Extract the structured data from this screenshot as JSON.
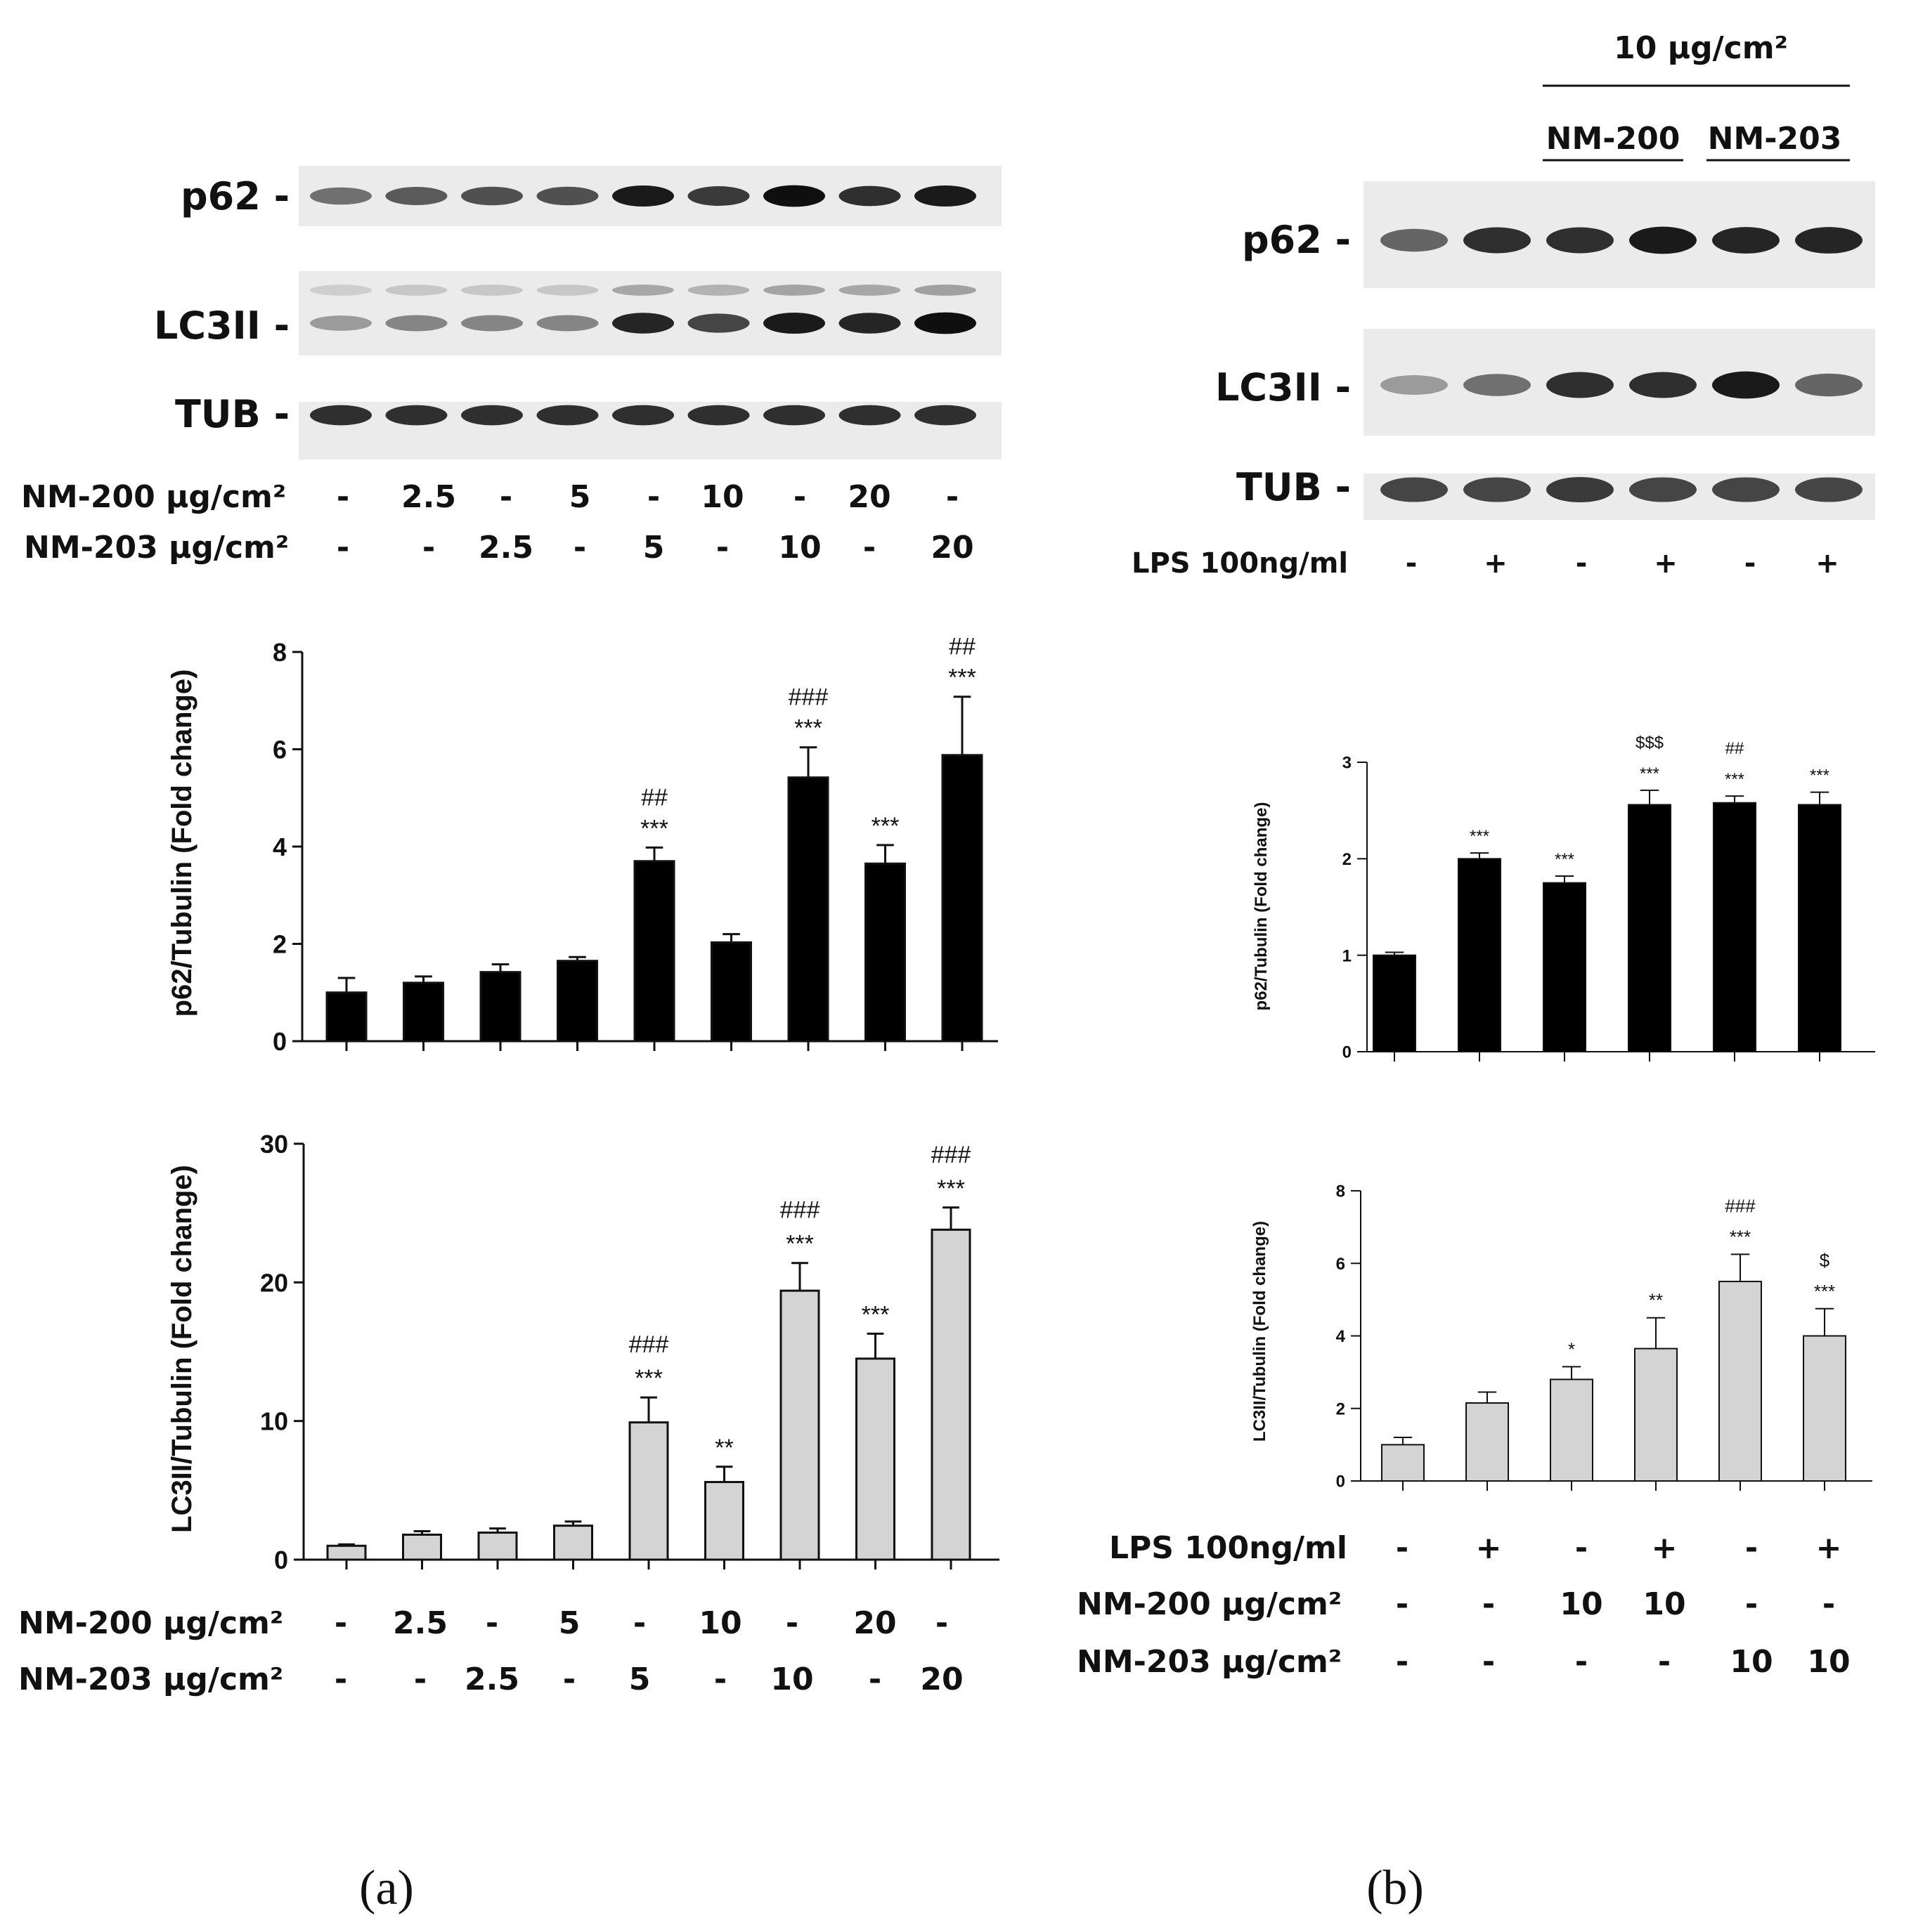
{
  "panel_a": {
    "letter": "(a)",
    "blot": {
      "rows": [
        {
          "name": "p62",
          "label": "p62 -"
        },
        {
          "name": "lc3ii",
          "label": "LC3II -"
        },
        {
          "name": "tub",
          "label": "TUB -"
        }
      ],
      "lane_count": 9,
      "band_darkness": {
        "p62": [
          0.55,
          0.65,
          0.7,
          0.7,
          0.95,
          0.8,
          1.0,
          0.85,
          0.95
        ],
        "lc3ii": [
          0.35,
          0.45,
          0.45,
          0.45,
          0.9,
          0.75,
          0.95,
          0.9,
          1.0
        ],
        "tub": [
          0.85,
          0.85,
          0.85,
          0.85,
          0.85,
          0.85,
          0.85,
          0.85,
          0.85
        ]
      }
    },
    "conditions_top": [
      {
        "label": "NM-200 μg/cm²",
        "values": [
          "-",
          "2.5",
          "-",
          "5",
          "-",
          "10",
          "-",
          "20",
          "-"
        ]
      },
      {
        "label": "NM-203 μg/cm²",
        "values": [
          "-",
          "-",
          "2.5",
          "-",
          "5",
          "-",
          "10",
          "-",
          "20"
        ]
      }
    ],
    "conditions_bottom": [
      {
        "label": "NM-200 μg/cm²",
        "values": [
          "-",
          "2.5",
          "-",
          "5",
          "-",
          "10",
          "-",
          "20",
          "-"
        ]
      },
      {
        "label": "NM-203 μg/cm²",
        "values": [
          "-",
          "-",
          "2.5",
          "-",
          "5",
          "-",
          "10",
          "-",
          "20"
        ]
      }
    ]
  },
  "panel_b": {
    "letter": "(b)",
    "dose_header": "10 μg/cm²",
    "group_labels": [
      "NM-200",
      "NM-203"
    ],
    "blot": {
      "rows": [
        {
          "name": "p62",
          "label": "p62 -"
        },
        {
          "name": "lc3ii",
          "label": "LC3II -"
        },
        {
          "name": "tub",
          "label": "TUB -"
        }
      ],
      "lane_count": 6,
      "band_darkness": {
        "p62": [
          0.6,
          0.85,
          0.85,
          0.95,
          0.9,
          0.9
        ],
        "lc3ii": [
          0.35,
          0.55,
          0.85,
          0.85,
          0.95,
          0.6
        ],
        "tub": [
          0.75,
          0.75,
          0.8,
          0.75,
          0.75,
          0.75
        ]
      }
    },
    "lps_top": {
      "label": "LPS 100ng/ml",
      "values": [
        "-",
        "+",
        "-",
        "+",
        "-",
        "+"
      ]
    },
    "conditions_bottom": [
      {
        "label": "LPS 100ng/ml",
        "values": [
          "-",
          "+",
          "-",
          "+",
          "-",
          "+"
        ]
      },
      {
        "label": "NM-200 μg/cm²",
        "values": [
          "-",
          "-",
          "10",
          "10",
          "-",
          "-"
        ]
      },
      {
        "label": "NM-203 μg/cm²",
        "values": [
          "-",
          "-",
          "-",
          "-",
          "10",
          "10"
        ]
      }
    ]
  },
  "chart_data": [
    {
      "id": "a_p62",
      "type": "bar",
      "title": "",
      "ylabel": "p62/Tubulin (Fold change)",
      "ylim": [
        0,
        8
      ],
      "yticks": [
        0,
        2,
        4,
        6,
        8
      ],
      "color": "#000000",
      "values": [
        1.0,
        1.2,
        1.42,
        1.65,
        3.7,
        2.03,
        5.42,
        3.65,
        5.88
      ],
      "errors": [
        0.3,
        0.13,
        0.16,
        0.08,
        0.28,
        0.17,
        0.62,
        0.38,
        1.2
      ],
      "annotations": [
        [],
        [],
        [],
        [],
        [
          "##",
          "***"
        ],
        [],
        [
          "###",
          "***"
        ],
        [
          "***"
        ],
        [
          "##",
          "***"
        ]
      ]
    },
    {
      "id": "a_lc3ii",
      "type": "bar",
      "title": "",
      "ylabel": "LC3II/Tubulin (Fold change)",
      "ylim": [
        0,
        30
      ],
      "yticks": [
        0,
        10,
        20,
        30
      ],
      "color": "#d4d4d4",
      "values": [
        1.0,
        1.8,
        1.95,
        2.45,
        9.9,
        5.6,
        19.4,
        14.5,
        23.8
      ],
      "errors": [
        0.1,
        0.25,
        0.3,
        0.3,
        1.8,
        1.1,
        2.0,
        1.8,
        1.6
      ],
      "annotations": [
        [],
        [],
        [],
        [],
        [
          "###",
          "***"
        ],
        [
          "**"
        ],
        [
          "###",
          "***"
        ],
        [
          "***"
        ],
        [
          "###",
          "***"
        ]
      ]
    },
    {
      "id": "b_p62",
      "type": "bar",
      "title": "",
      "ylabel": "p62/Tubulin (Fold change)",
      "ylim": [
        0,
        3
      ],
      "yticks": [
        0,
        1,
        2,
        3
      ],
      "color": "#000000",
      "values": [
        1.0,
        2.0,
        1.75,
        2.56,
        2.58,
        2.56
      ],
      "errors": [
        0.03,
        0.06,
        0.07,
        0.15,
        0.07,
        0.13
      ],
      "annotations": [
        [],
        [
          "***"
        ],
        [
          "***"
        ],
        [
          "$$$",
          "***"
        ],
        [
          "##",
          "***"
        ],
        [
          "***"
        ]
      ]
    },
    {
      "id": "b_lc3ii",
      "type": "bar",
      "title": "",
      "ylabel": "LC3II/Tubulin (Fold change)",
      "ylim": [
        0,
        8
      ],
      "yticks": [
        0,
        2,
        4,
        6,
        8
      ],
      "color": "#d4d4d4",
      "values": [
        1.0,
        2.15,
        2.8,
        3.65,
        5.5,
        4.0
      ],
      "errors": [
        0.2,
        0.3,
        0.35,
        0.85,
        0.75,
        0.75
      ],
      "annotations": [
        [],
        [],
        [
          "*"
        ],
        [
          "**"
        ],
        [
          "###",
          "***"
        ],
        [
          "$",
          "***"
        ]
      ]
    }
  ]
}
